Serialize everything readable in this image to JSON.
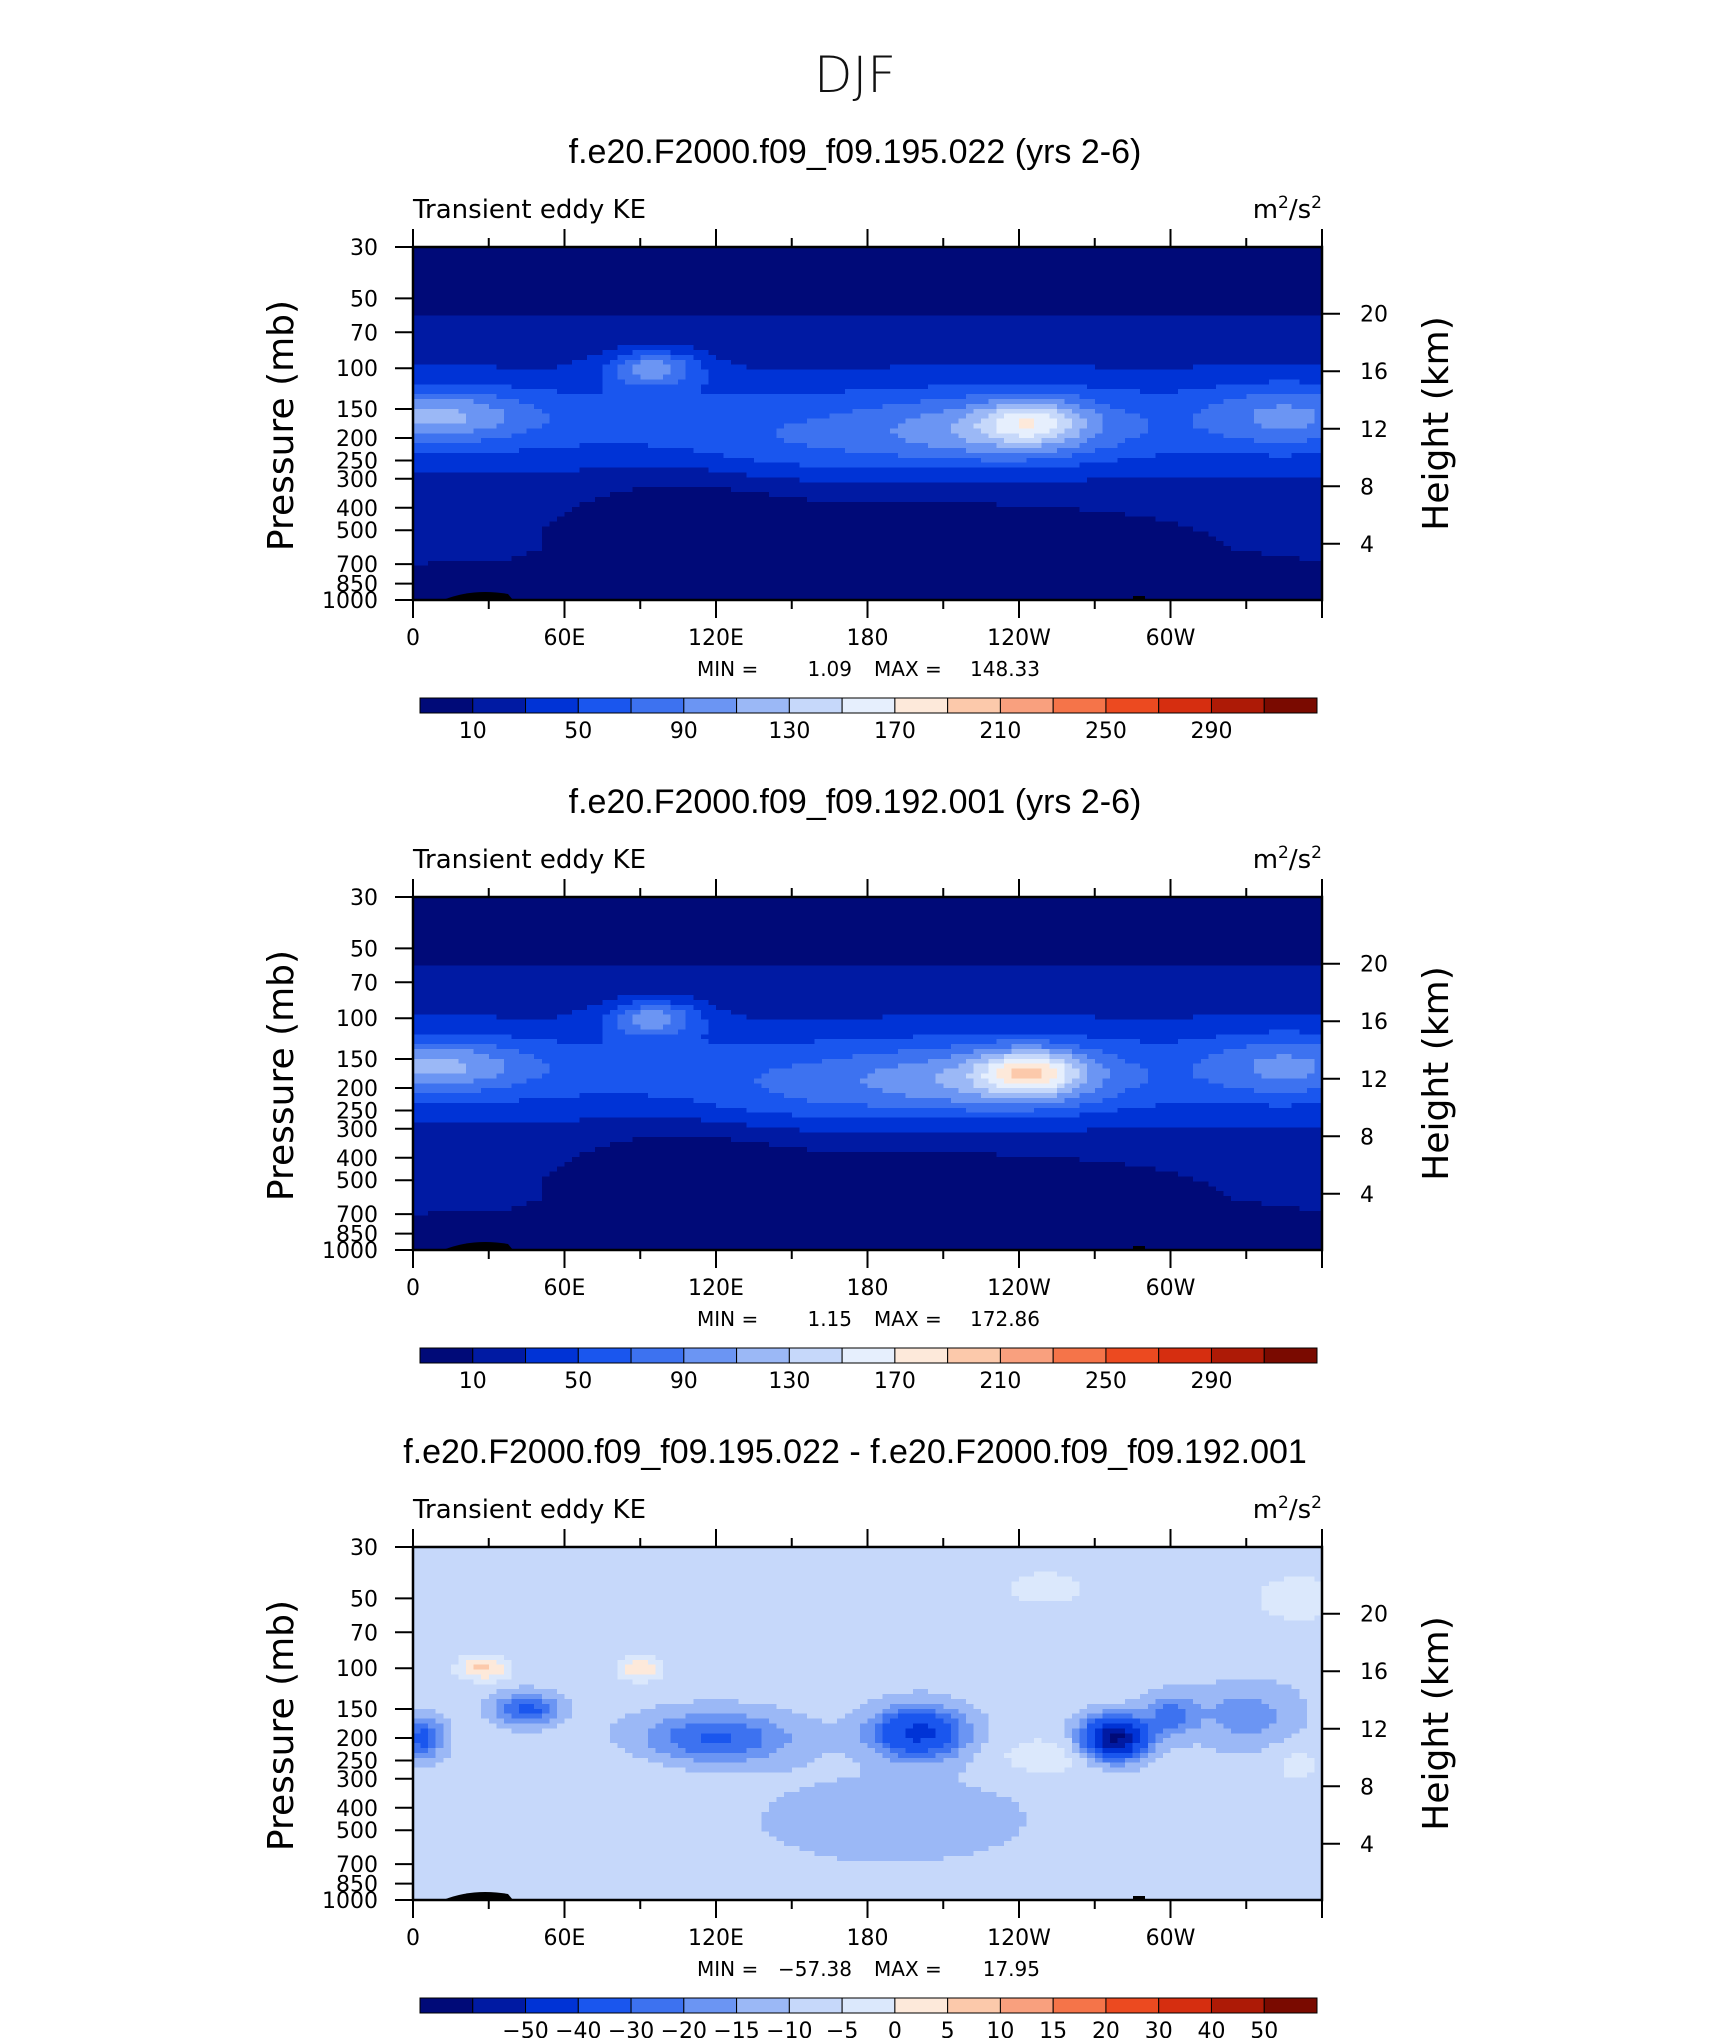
{
  "figure_title": "DJF",
  "colors": {
    "blue_scale": [
      "#000a78",
      "#001aa3",
      "#0033d6",
      "#1a56ee",
      "#3d72f0",
      "#6b95f3",
      "#9bb8f6",
      "#c6d8fa",
      "#e6effd",
      "#fde9da",
      "#fcc9ab",
      "#f9a07e",
      "#f57449",
      "#ec4a20",
      "#d62e10",
      "#ad1a06",
      "#7a0a00"
    ],
    "diff_scale": [
      "#000a78",
      "#001aa3",
      "#0033d6",
      "#1a56ee",
      "#3d72f0",
      "#6b95f3",
      "#9bb8f6",
      "#c6d8fa",
      "#dbe8fc",
      "#fde9da",
      "#fcc9ab",
      "#f9a07e",
      "#f57449",
      "#ec4a20",
      "#d62e10",
      "#ad1a06",
      "#7a0a00"
    ],
    "terrain": "#000000"
  },
  "chart_data": [
    {
      "type": "heatmap",
      "title": "f.e20.F2000.f09_f09.195.022 (yrs 2-6)",
      "left_label": "Transient eddy KE",
      "units": "m²/s²",
      "units_base": "m",
      "units_exp1": "2",
      "units_mid": "/s",
      "units_exp2": "2",
      "xlabel": "",
      "ylabel": "Pressure (mb)",
      "ylabel_right": "Height (km)",
      "x_ticks": [
        "0",
        "60E",
        "120E",
        "180",
        "120W",
        "60W"
      ],
      "y_ticks": [
        "30",
        "50",
        "70",
        "100",
        "150",
        "200",
        "250",
        "300",
        "400",
        "500",
        "700",
        "850",
        "1000"
      ],
      "y_ticks_right": [
        "20",
        "16",
        "12",
        "8",
        "4"
      ],
      "min_label": "MIN =",
      "min_value": "1.09",
      "max_label": "MAX =",
      "max_value": "148.33",
      "colorbar_labels": [
        "10",
        "50",
        "90",
        "130",
        "170",
        "210",
        "250",
        "290"
      ],
      "field": "upper_jet_model_a"
    },
    {
      "type": "heatmap",
      "title": "f.e20.F2000.f09_f09.192.001 (yrs 2-6)",
      "left_label": "Transient eddy KE",
      "units": "m²/s²",
      "units_base": "m",
      "units_exp1": "2",
      "units_mid": "/s",
      "units_exp2": "2",
      "xlabel": "",
      "ylabel": "Pressure (mb)",
      "ylabel_right": "Height (km)",
      "x_ticks": [
        "0",
        "60E",
        "120E",
        "180",
        "120W",
        "60W"
      ],
      "y_ticks": [
        "30",
        "50",
        "70",
        "100",
        "150",
        "200",
        "250",
        "300",
        "400",
        "500",
        "700",
        "850",
        "1000"
      ],
      "y_ticks_right": [
        "20",
        "16",
        "12",
        "8",
        "4"
      ],
      "min_label": "MIN =",
      "min_value": "1.15",
      "max_label": "MAX =",
      "max_value": "172.86",
      "colorbar_labels": [
        "10",
        "50",
        "90",
        "130",
        "170",
        "210",
        "250",
        "290"
      ],
      "field": "upper_jet_model_b"
    },
    {
      "type": "heatmap",
      "title": "f.e20.F2000.f09_f09.195.022 - f.e20.F2000.f09_f09.192.001",
      "left_label": "Transient eddy KE",
      "units": "m²/s²",
      "units_base": "m",
      "units_exp1": "2",
      "units_mid": "/s",
      "units_exp2": "2",
      "xlabel": "",
      "ylabel": "Pressure (mb)",
      "ylabel_right": "Height (km)",
      "x_ticks": [
        "0",
        "60E",
        "120E",
        "180",
        "120W",
        "60W"
      ],
      "y_ticks": [
        "30",
        "50",
        "70",
        "100",
        "150",
        "200",
        "250",
        "300",
        "400",
        "500",
        "700",
        "850",
        "1000"
      ],
      "y_ticks_right": [
        "20",
        "16",
        "12",
        "8",
        "4"
      ],
      "min_label": "MIN =",
      "min_value": "−57.38",
      "max_label": "MAX =",
      "max_value": "17.95",
      "colorbar_labels": [
        "−50",
        "−40",
        "−30",
        "−20",
        "−15",
        "−10",
        "−5",
        "0",
        "5",
        "10",
        "15",
        "20",
        "30",
        "40",
        "50"
      ],
      "field": "difference"
    }
  ]
}
